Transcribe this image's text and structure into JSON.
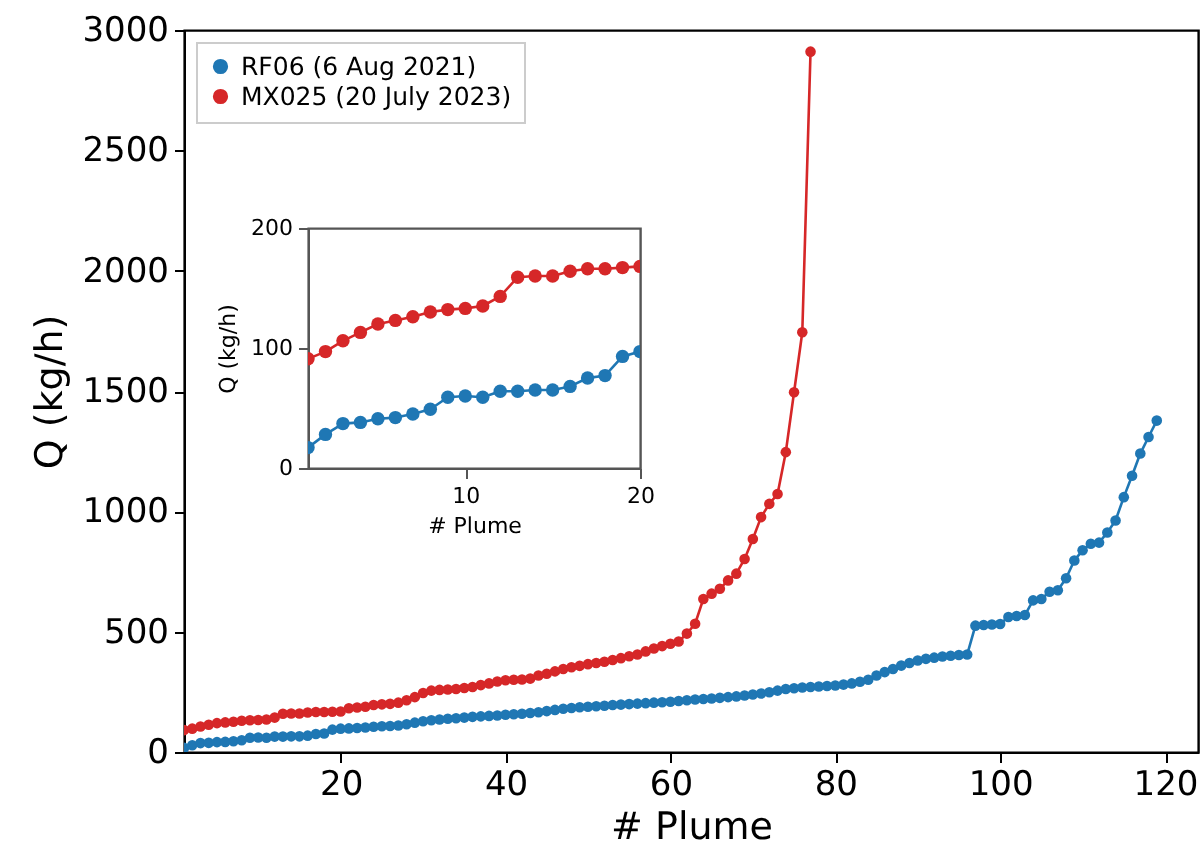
{
  "chart_data": [
    {
      "type": "line",
      "xlabel": "# Plume",
      "ylabel": "Q (kg/h)",
      "xlim": [
        1,
        124
      ],
      "xticks": [
        20,
        40,
        60,
        80,
        100,
        120
      ],
      "ylim": [
        0,
        3000
      ],
      "yticks": [
        0,
        500,
        1000,
        1500,
        2000,
        2500,
        3000
      ],
      "grid": false,
      "legend": "top left",
      "marker": "circle",
      "line_style": "solid",
      "series": [
        {
          "name": "RF06 (6 Aug 2021)",
          "color": "#1f77b4",
          "x": [
            1,
            2,
            3,
            4,
            5,
            6,
            7,
            8,
            9,
            10,
            11,
            12,
            13,
            14,
            15,
            16,
            17,
            18,
            19,
            20,
            21,
            22,
            23,
            24,
            25,
            26,
            27,
            28,
            29,
            30,
            31,
            32,
            33,
            34,
            35,
            36,
            37,
            38,
            39,
            40,
            41,
            42,
            43,
            44,
            45,
            46,
            47,
            48,
            49,
            50,
            51,
            52,
            53,
            54,
            55,
            56,
            57,
            58,
            59,
            60,
            61,
            62,
            63,
            64,
            65,
            66,
            67,
            68,
            69,
            70,
            71,
            72,
            73,
            74,
            75,
            76,
            77,
            78,
            79,
            80,
            81,
            82,
            83,
            84,
            85,
            86,
            87,
            88,
            89,
            90,
            91,
            92,
            93,
            94,
            95,
            96,
            97,
            98,
            99,
            100,
            101,
            102,
            103,
            104,
            105,
            106,
            107,
            108,
            109,
            110,
            111,
            112,
            113,
            114,
            115,
            116,
            117,
            118,
            119
          ],
          "values": [
            17,
            28,
            37,
            38,
            41,
            42,
            45,
            49,
            59,
            60,
            59,
            64,
            64,
            65,
            65,
            68,
            75,
            77,
            93,
            97,
            98,
            100,
            102,
            105,
            107,
            108,
            110,
            115,
            122,
            128,
            132,
            135,
            138,
            140,
            143,
            146,
            148,
            150,
            152,
            155,
            157,
            159,
            162,
            165,
            170,
            175,
            180,
            183,
            186,
            188,
            190,
            192,
            195,
            197,
            199,
            201,
            203,
            205,
            207,
            209,
            212,
            215,
            218,
            220,
            222,
            225,
            228,
            231,
            235,
            239,
            243,
            248,
            255,
            262,
            265,
            268,
            270,
            272,
            274,
            276,
            280,
            285,
            292,
            300,
            318,
            332,
            345,
            359,
            370,
            380,
            387,
            392,
            397,
            400,
            403,
            405,
            525,
            528,
            530,
            532,
            561,
            565,
            569,
            630,
            636,
            666,
            672,
            722,
            796,
            838,
            865,
            870,
            912,
            962,
            1059,
            1148,
            1240,
            1309,
            1377
          ]
        },
        {
          "name": "MX025 (20 July 2023)",
          "color": "#d62728",
          "x": [
            1,
            2,
            3,
            4,
            5,
            6,
            7,
            8,
            9,
            10,
            11,
            12,
            13,
            14,
            15,
            16,
            17,
            18,
            19,
            20,
            21,
            22,
            23,
            24,
            25,
            26,
            27,
            28,
            29,
            30,
            31,
            32,
            33,
            34,
            35,
            36,
            37,
            38,
            39,
            40,
            41,
            42,
            43,
            44,
            45,
            46,
            47,
            48,
            49,
            50,
            51,
            52,
            53,
            54,
            55,
            56,
            57,
            58,
            59,
            60,
            61,
            62,
            63,
            64,
            65,
            66,
            67,
            68,
            69,
            70,
            71,
            72,
            73,
            74,
            75,
            76,
            77
          ],
          "values": [
            91,
            97,
            106,
            113,
            120,
            123,
            126,
            130,
            132,
            133,
            135,
            143,
            159,
            160,
            160,
            164,
            166,
            166,
            167,
            168,
            182,
            185,
            188,
            195,
            198,
            200,
            205,
            215,
            228,
            245,
            255,
            258,
            260,
            262,
            266,
            270,
            278,
            285,
            293,
            298,
            300,
            301,
            305,
            318,
            325,
            335,
            345,
            352,
            358,
            365,
            370,
            375,
            382,
            390,
            398,
            405,
            418,
            430,
            440,
            450,
            459,
            492,
            533,
            636,
            658,
            678,
            713,
            741,
            802,
            885,
            976,
            1031,
            1072,
            1246,
            1495,
            1744,
            2910
          ]
        }
      ]
    },
    {
      "type": "line",
      "xlabel": "# Plume",
      "ylabel": "Q (kg/h)",
      "xlim": [
        1,
        20
      ],
      "xticks": [
        10,
        20
      ],
      "ylim": [
        0,
        200
      ],
      "yticks": [
        0,
        100,
        200
      ],
      "grid": false,
      "marker": "circle",
      "line_style": "solid",
      "series": [
        {
          "color": "#1f77b4",
          "x": [
            1,
            2,
            3,
            4,
            5,
            6,
            7,
            8,
            9,
            10,
            11,
            12,
            13,
            14,
            15,
            16,
            17,
            18,
            19,
            20
          ],
          "values": [
            17,
            28,
            37,
            38,
            41,
            42,
            45,
            49,
            59,
            60,
            59,
            64,
            64,
            65,
            65,
            68,
            75,
            77,
            93,
            97
          ]
        },
        {
          "color": "#d62728",
          "x": [
            1,
            2,
            3,
            4,
            5,
            6,
            7,
            8,
            9,
            10,
            11,
            12,
            13,
            14,
            15,
            16,
            17,
            18,
            19,
            20
          ],
          "values": [
            91,
            97,
            106,
            113,
            120,
            123,
            126,
            130,
            132,
            133,
            135,
            143,
            159,
            160,
            160,
            164,
            166,
            166,
            167,
            168
          ]
        }
      ]
    }
  ]
}
